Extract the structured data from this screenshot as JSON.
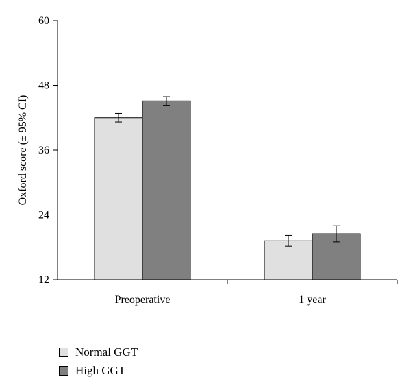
{
  "chart_data": {
    "type": "bar",
    "categories": [
      "Preoperative",
      "1 year"
    ],
    "series": [
      {
        "name": "Normal GGT",
        "color": "#e0e0e0",
        "values": [
          42.0,
          19.2
        ],
        "ci_low": [
          41.2,
          18.2
        ],
        "ci_high": [
          42.8,
          20.2
        ]
      },
      {
        "name": "High GGT",
        "color": "#808080",
        "values": [
          45.1,
          20.5
        ],
        "ci_low": [
          44.3,
          19.0
        ],
        "ci_high": [
          45.9,
          22.0
        ]
      }
    ],
    "ylabel": "Oxford score (± 95% CI)",
    "xlabel": "",
    "ylim": [
      12,
      60
    ],
    "yticks": [
      12,
      24,
      36,
      48,
      60
    ],
    "grid": false,
    "legend_position": "bottom-left"
  }
}
